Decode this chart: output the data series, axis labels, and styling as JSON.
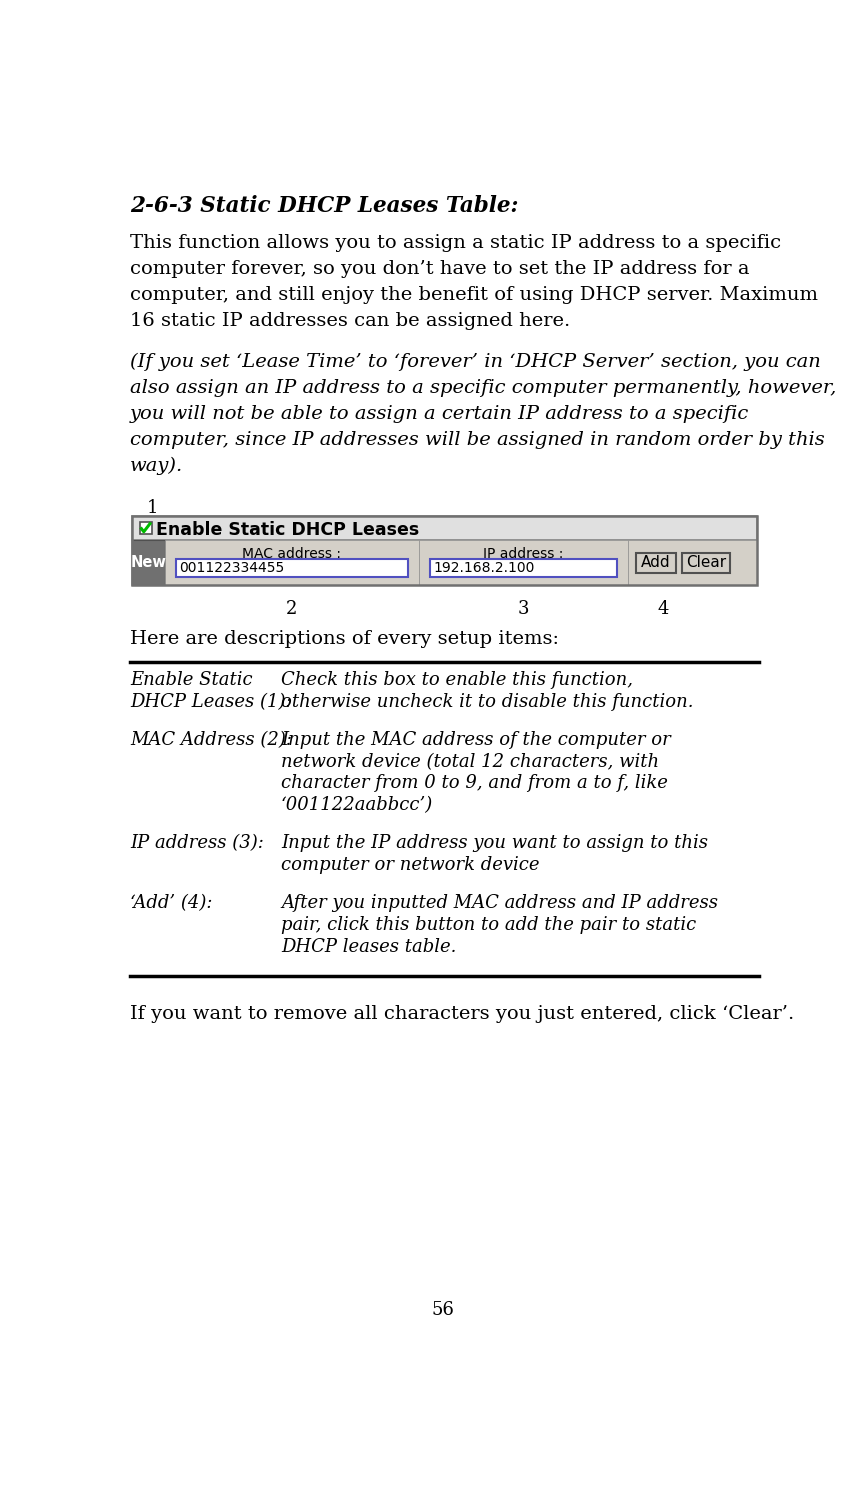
{
  "title": "2-6-3 Static DHCP Leases Table:",
  "para1_lines": [
    "This function allows you to assign a static IP address to a specific",
    "computer forever, so you don’t have to set the IP address for a",
    "computer, and still enjoy the benefit of using DHCP server. Maximum",
    "16 static IP addresses can be assigned here."
  ],
  "para2_lines": [
    "(If you set ‘Lease Time’ to ‘forever’ in ‘DHCP Server’ section, you can",
    "also assign an IP address to a specific computer permanently, however,",
    "you will not be able to assign a certain IP address to a specific",
    "computer, since IP addresses will be assigned in random order by this",
    "way)."
  ],
  "label_1": "1",
  "checkbox_label": "Enable Static DHCP Leases",
  "col_mac": "MAC address :",
  "col_ip": "IP address :",
  "new_label": "New",
  "mac_value": "001122334455",
  "ip_value": "192.168.2.100",
  "btn_add": "Add",
  "btn_clear": "Clear",
  "label_2": "2",
  "label_3": "3",
  "label_4": "4",
  "here_text": "Here are descriptions of every setup items:",
  "row1_col1_lines": [
    "Enable Static",
    "DHCP Leases (1):"
  ],
  "row1_col2_lines": [
    "Check this box to enable this function,",
    "otherwise uncheck it to disable this function."
  ],
  "row2_col1_lines": [
    "MAC Address (2):"
  ],
  "row2_col2_lines": [
    "Input the MAC address of the computer or",
    "network device (total 12 characters, with",
    "character from 0 to 9, and from a to f, like",
    "‘001122aabbcc’)"
  ],
  "row3_col1_lines": [
    "IP address (3):"
  ],
  "row3_col2_lines": [
    "Input the IP address you want to assign to this",
    "computer or network device"
  ],
  "row4_col1_lines": [
    "‘Add’ (4):"
  ],
  "row4_col2_lines": [
    "After you inputted MAC address and IP address",
    "pair, click this button to add the pair to static",
    "DHCP leases table."
  ],
  "footer_text": "If you want to remove all characters you just entered, click ‘Clear’.",
  "page_num": "56",
  "bg_color": "#ffffff",
  "text_color": "#000000",
  "widget_bg": "#d4d0c8",
  "widget_border": "#808080"
}
